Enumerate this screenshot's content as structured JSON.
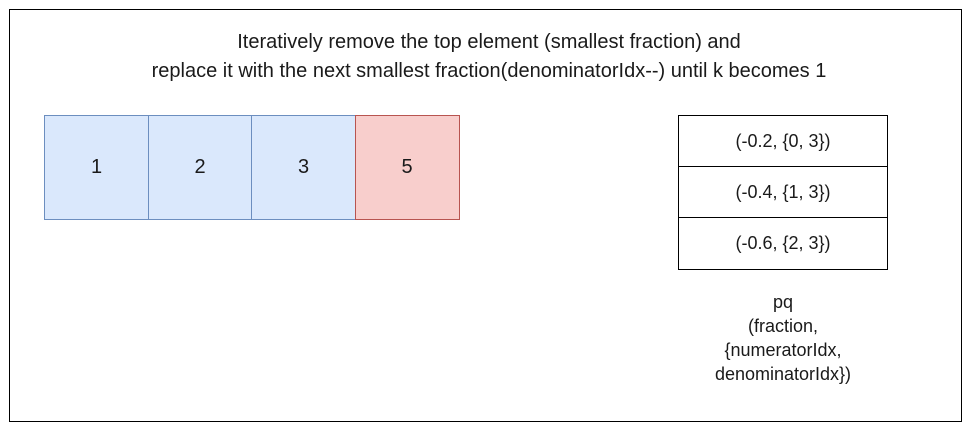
{
  "title": {
    "line1": "Iteratively remove the top element (smallest fraction) and",
    "line2": "replace it with the next smallest fraction(denominatorIdx--) until k becomes 1"
  },
  "array": {
    "cells": [
      {
        "value": "1",
        "highlighted": false
      },
      {
        "value": "2",
        "highlighted": false
      },
      {
        "value": "3",
        "highlighted": false
      },
      {
        "value": "5",
        "highlighted": true
      }
    ]
  },
  "priority_queue": {
    "items": [
      "(-0.2, {0, 3})",
      "(-0.4, {1, 3})",
      "(-0.6, {2, 3})"
    ],
    "caption": {
      "line1": "pq",
      "line2": "(fraction,",
      "line3": "{numeratorIdx,",
      "line4": "denominatorIdx})"
    }
  },
  "colors": {
    "cell_fill": "#dae8fc",
    "cell_border": "#6c8ebf",
    "highlight_fill": "#f8cecc",
    "highlight_border": "#b85450"
  }
}
